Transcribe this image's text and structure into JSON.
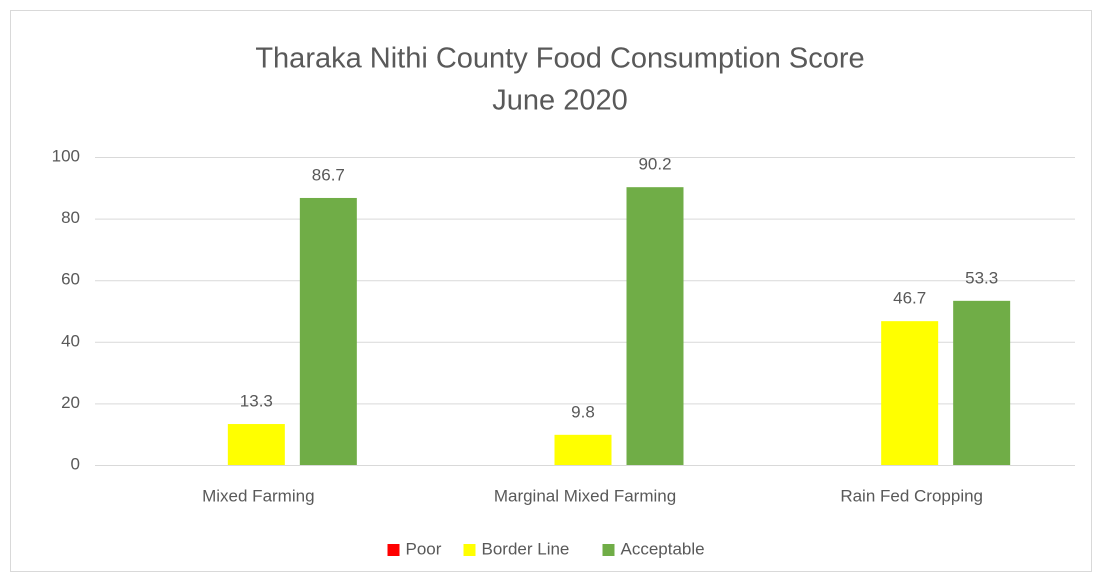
{
  "chart_data": {
    "type": "bar",
    "title": [
      "Tharaka Nithi County Food Consumption Score",
      "June 2020"
    ],
    "categories": [
      "Mixed Farming",
      "Marginal Mixed Farming",
      "Rain Fed Cropping"
    ],
    "series": [
      {
        "name": "Poor",
        "color": "#ff0000",
        "values": [
          null,
          null,
          null
        ]
      },
      {
        "name": "Border Line",
        "color": "#ffff00",
        "values": [
          13.3,
          9.8,
          46.7
        ]
      },
      {
        "name": "Acceptable",
        "color": "#70ad47",
        "values": [
          86.7,
          90.2,
          53.3
        ]
      }
    ],
    "ylim": [
      0,
      100
    ],
    "yticks": [
      0,
      20,
      40,
      60,
      80,
      100
    ],
    "grid": true,
    "legend": "bottom"
  }
}
